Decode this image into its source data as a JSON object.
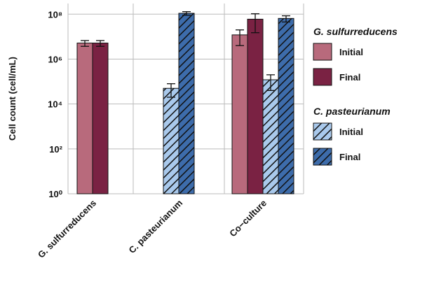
{
  "chart_data": {
    "type": "bar",
    "log_scale": true,
    "grid": true,
    "y_label": "Cell count (cell/mL)",
    "categories": [
      "G. sulfurreducens",
      "C. pasteurianum",
      "Co−culture"
    ],
    "ylim": [
      1,
      300000000
    ],
    "yticks": [
      {
        "value": 1,
        "label": "10⁰"
      },
      {
        "value": 100,
        "label": "10²"
      },
      {
        "value": 10000,
        "label": "10⁴"
      },
      {
        "value": 1000000,
        "label": "10⁶"
      },
      {
        "value": 100000000,
        "label": "10⁸"
      }
    ],
    "groups": [
      {
        "name": "G. sulfurreducens",
        "series": [
          {
            "name": "Initial",
            "color": "#b86a7c",
            "hatch": false,
            "values": [
              5200000,
              null,
              12000000
            ],
            "errors": [
              1500000,
              null,
              8000000
            ]
          },
          {
            "name": "Final",
            "color": "#7a2243",
            "hatch": false,
            "values": [
              5200000,
              null,
              60000000
            ],
            "errors": [
              1500000,
              null,
              45000000
            ]
          }
        ]
      },
      {
        "name": "C. pasteurianum",
        "series": [
          {
            "name": "Initial",
            "color": "#a9c9ec",
            "hatch": true,
            "values": [
              null,
              50000,
              120000
            ],
            "errors": [
              null,
              30000,
              80000
            ]
          },
          {
            "name": "Final",
            "color": "#3d6cab",
            "hatch": true,
            "values": [
              null,
              110000000,
              65000000
            ],
            "errors": [
              null,
              20000000,
              20000000
            ]
          }
        ]
      }
    ]
  }
}
